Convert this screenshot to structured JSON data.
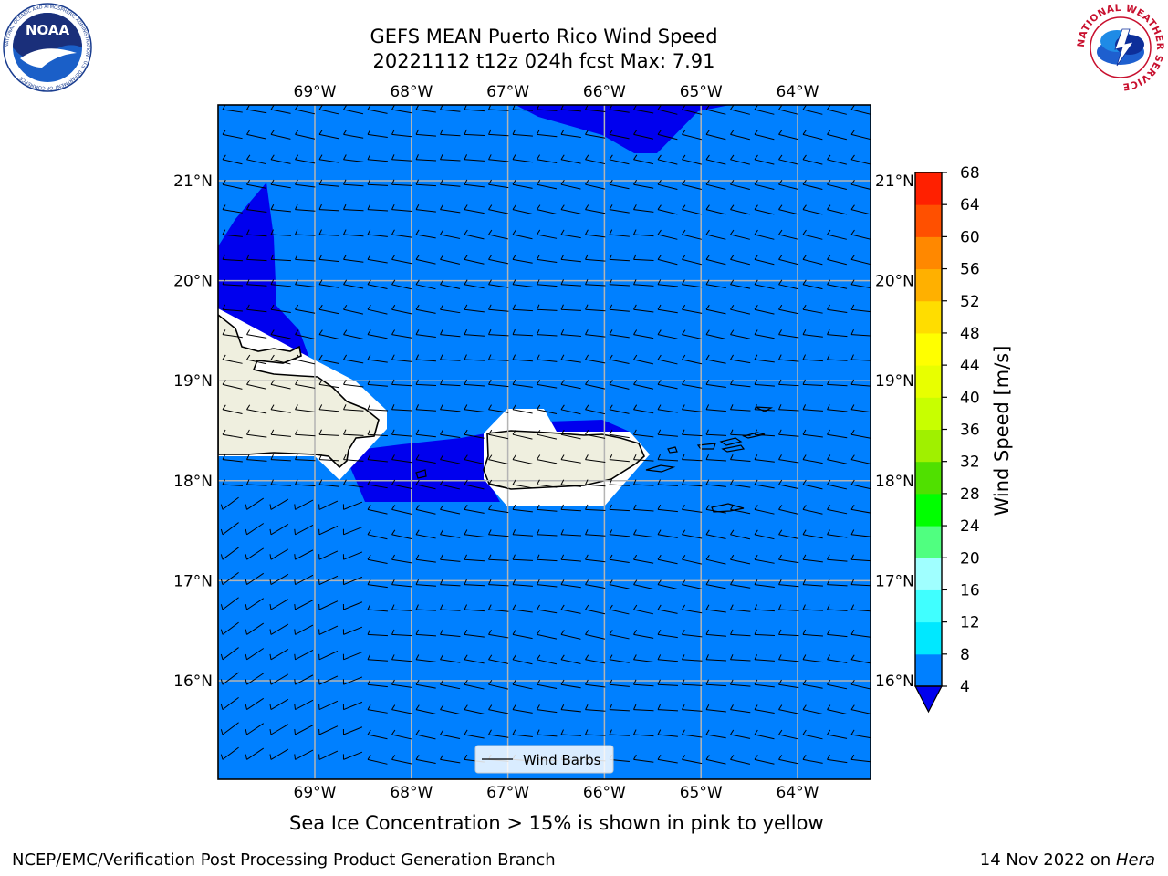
{
  "title": {
    "line1": "GEFS MEAN Puerto Rico Wind Speed",
    "line2": "20221112 t12z 024h fcst   Max: 7.91"
  },
  "logos": {
    "noaa_text": "NOAA",
    "noaa_ring": "NATIONAL OCEANIC AND ATMOSPHERIC ADMINISTRATION · U.S. DEPARTMENT OF COMMERCE",
    "nws_ring": "NATIONAL WEATHER SERVICE"
  },
  "map": {
    "lon_ticks": [
      "69°W",
      "68°W",
      "67°W",
      "66°W",
      "65°W",
      "64°W"
    ],
    "lat_ticks": [
      "21°N",
      "20°N",
      "19°N",
      "18°N",
      "17°N",
      "16°N"
    ],
    "legend_label": "Wind Barbs",
    "colors": {
      "ocean_band": "#0080ff",
      "low_band": "#0000ee",
      "land": "#efefdf",
      "grid": "#b4b4b4"
    }
  },
  "colorbar": {
    "label": "Wind Speed [m/s]",
    "ticks": [
      "4",
      "8",
      "12",
      "16",
      "20",
      "24",
      "28",
      "32",
      "36",
      "40",
      "44",
      "48",
      "52",
      "56",
      "60",
      "64",
      "68"
    ],
    "colors": [
      "#0080ff",
      "#00e8ff",
      "#40ffff",
      "#a0ffff",
      "#50ff80",
      "#00ff00",
      "#50e000",
      "#a0f000",
      "#c8ff00",
      "#e8ff00",
      "#ffff00",
      "#ffdd00",
      "#ffb000",
      "#ff8800",
      "#ff5000",
      "#ff2000"
    ],
    "under_color": "#0000ee"
  },
  "caption": "Sea Ice Concentration > 15% is shown in pink to yellow",
  "footer": {
    "left": "NCEP/EMC/Verification Post Processing Product Generation Branch",
    "right_prefix": "14 Nov 2022 on ",
    "right_machine": "Hera"
  }
}
